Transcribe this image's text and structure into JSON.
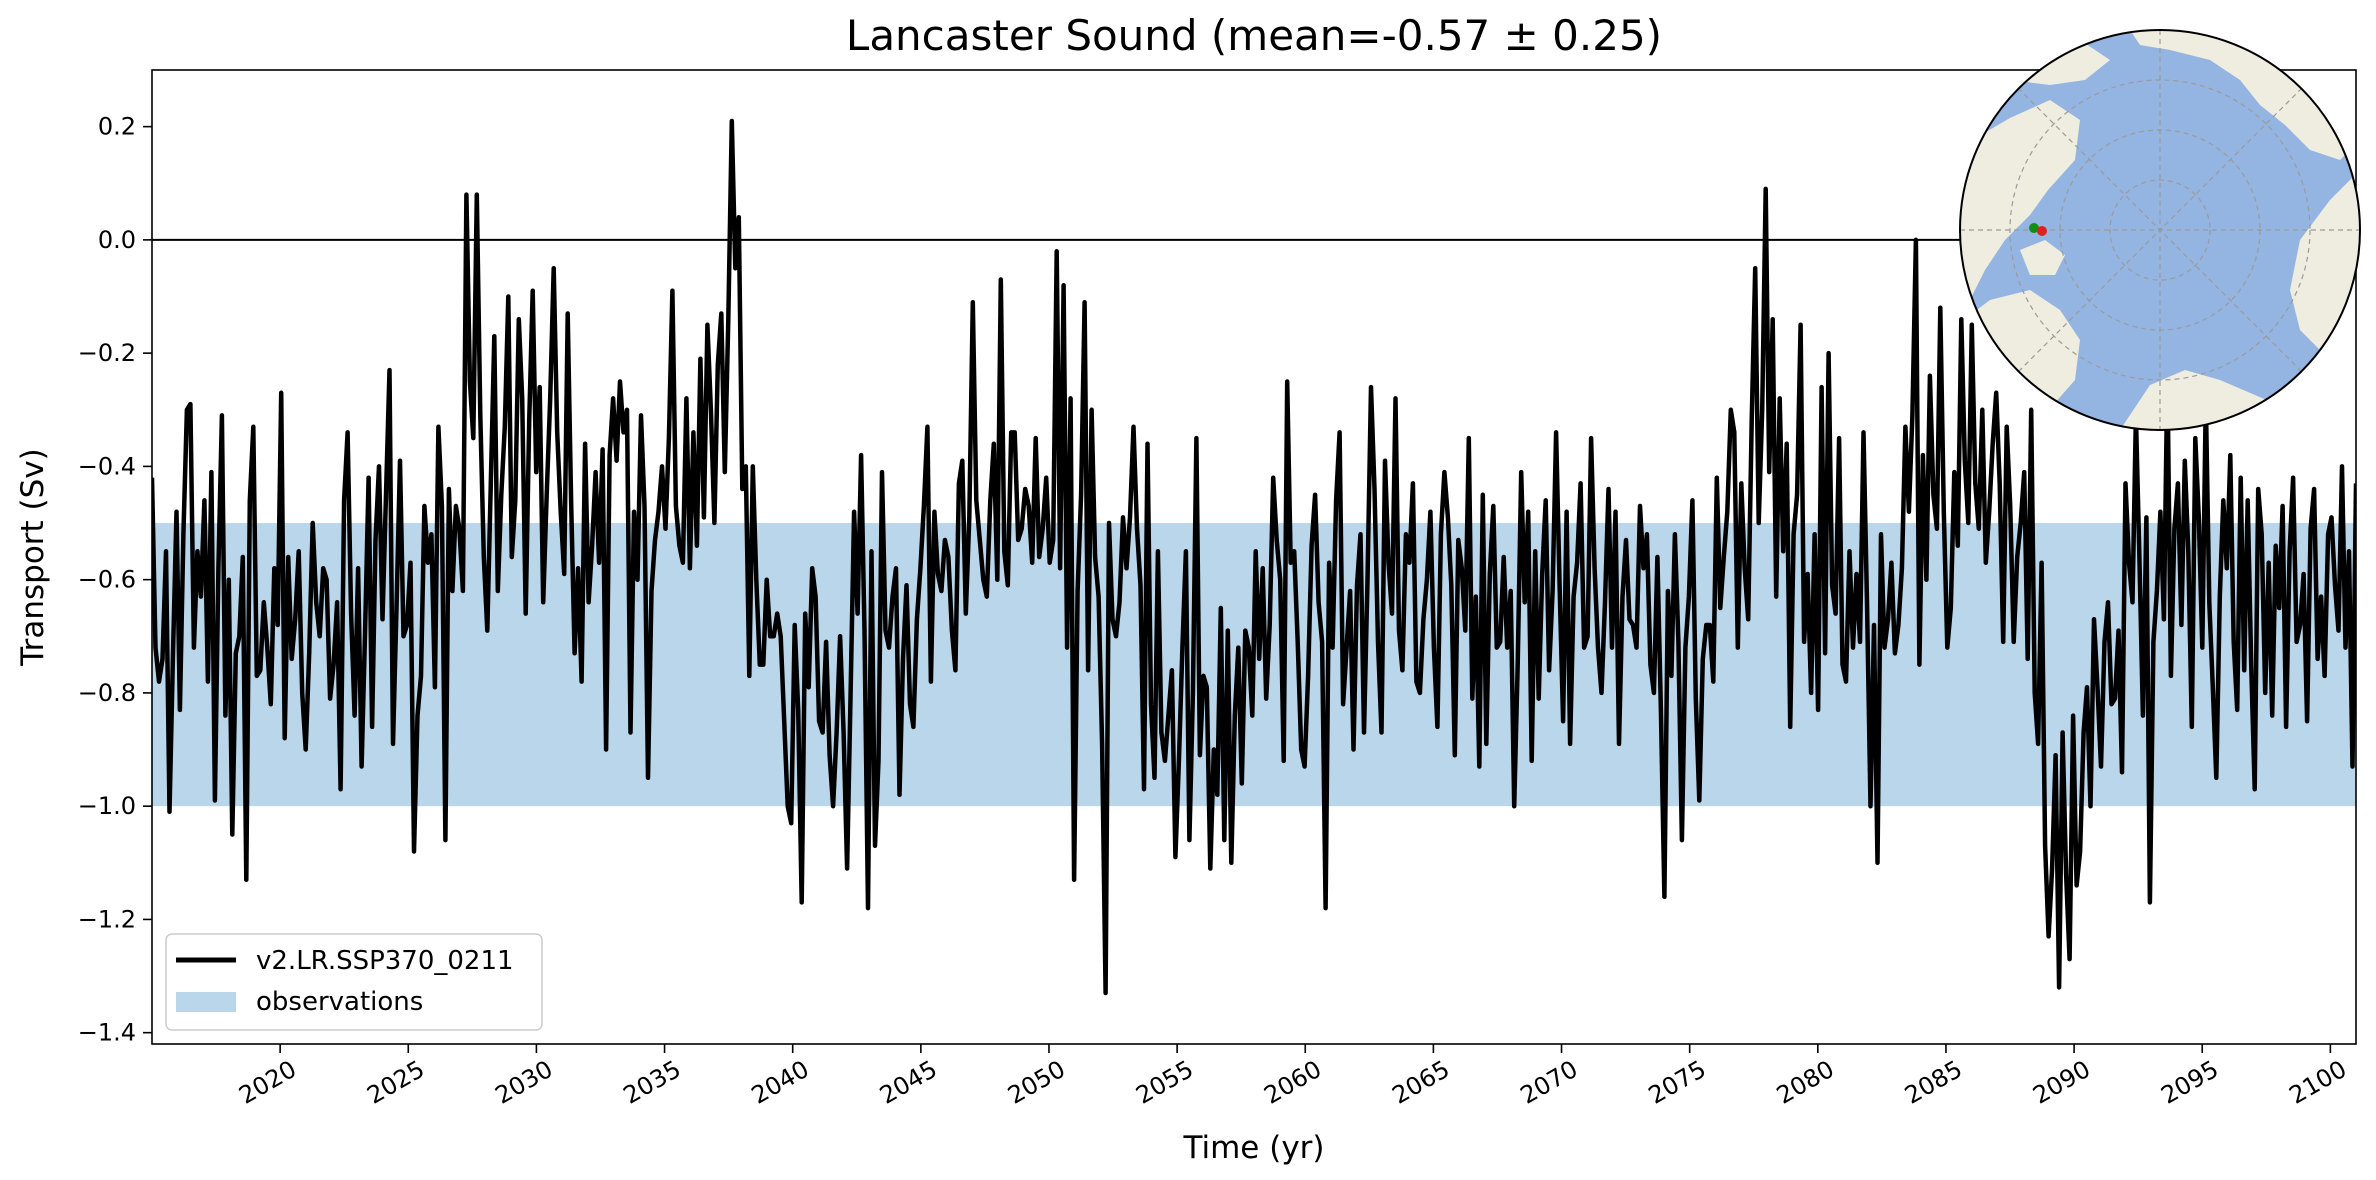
{
  "chart_data": {
    "type": "line",
    "title": "Lancaster Sound (mean=-0.57 ± 0.25)",
    "xlabel": "Time (yr)",
    "ylabel": "Transport (Sv)",
    "xlim": [
      2015,
      2101
    ],
    "ylim": [
      -1.42,
      0.3
    ],
    "x_ticks": [
      2020,
      2025,
      2030,
      2035,
      2040,
      2045,
      2050,
      2055,
      2060,
      2065,
      2070,
      2075,
      2080,
      2085,
      2090,
      2095,
      2100
    ],
    "x_tick_labels": [
      "2020",
      "2025",
      "2030",
      "2035",
      "2040",
      "2045",
      "2050",
      "2055",
      "2060",
      "2065",
      "2070",
      "2075",
      "2080",
      "2085",
      "2090",
      "2095",
      "2100"
    ],
    "y_ticks": [
      0.2,
      0.0,
      -0.2,
      -0.4,
      -0.6,
      -0.8,
      -1.0,
      -1.2,
      -1.4
    ],
    "y_tick_labels": [
      "0.2",
      "0.0",
      "−0.2",
      "−0.4",
      "−0.6",
      "−0.8",
      "−1.0",
      "−1.2",
      "−1.4"
    ],
    "zero_line": 0.0,
    "grid": false,
    "legend_position": "lower-left",
    "observations_band": {
      "name": "observations",
      "y_min": -1.0,
      "y_max": -0.5,
      "color": "#bad6ea"
    },
    "series": [
      {
        "name": "v2.LR.SSP370_0211",
        "color": "#000000",
        "resolution": "monthly",
        "x_start": 2015.0,
        "x_end": 2101.0,
        "values": [
          -0.42,
          -0.72,
          -0.78,
          -0.74,
          -0.55,
          -1.01,
          -0.73,
          -0.48,
          -0.83,
          -0.52,
          -0.3,
          -0.29,
          -0.72,
          -0.55,
          -0.63,
          -0.46,
          -0.78,
          -0.41,
          -0.99,
          -0.58,
          -0.31,
          -0.84,
          -0.6,
          -1.05,
          -0.73,
          -0.7,
          -0.56,
          -1.13,
          -0.46,
          -0.33,
          -0.77,
          -0.76,
          -0.64,
          -0.72,
          -0.82,
          -0.58,
          -0.68,
          -0.27,
          -0.88,
          -0.56,
          -0.74,
          -0.67,
          -0.55,
          -0.8,
          -0.9,
          -0.73,
          -0.5,
          -0.64,
          -0.7,
          -0.58,
          -0.6,
          -0.81,
          -0.75,
          -0.64,
          -0.97,
          -0.46,
          -0.34,
          -0.66,
          -0.84,
          -0.58,
          -0.93,
          -0.69,
          -0.42,
          -0.86,
          -0.53,
          -0.4,
          -0.67,
          -0.45,
          -0.23,
          -0.89,
          -0.65,
          -0.39,
          -0.7,
          -0.68,
          -0.57,
          -1.08,
          -0.84,
          -0.77,
          -0.47,
          -0.57,
          -0.52,
          -0.79,
          -0.33,
          -0.47,
          -1.06,
          -0.44,
          -0.62,
          -0.47,
          -0.51,
          -0.62,
          0.08,
          -0.25,
          -0.35,
          0.08,
          -0.31,
          -0.56,
          -0.69,
          -0.43,
          -0.17,
          -0.62,
          -0.45,
          -0.33,
          -0.1,
          -0.56,
          -0.46,
          -0.14,
          -0.28,
          -0.66,
          -0.32,
          -0.09,
          -0.41,
          -0.26,
          -0.64,
          -0.45,
          -0.28,
          -0.05,
          -0.34,
          -0.48,
          -0.59,
          -0.13,
          -0.46,
          -0.73,
          -0.58,
          -0.78,
          -0.36,
          -0.64,
          -0.54,
          -0.41,
          -0.57,
          -0.37,
          -0.9,
          -0.38,
          -0.28,
          -0.39,
          -0.25,
          -0.34,
          -0.3,
          -0.87,
          -0.48,
          -0.6,
          -0.31,
          -0.47,
          -0.95,
          -0.62,
          -0.53,
          -0.48,
          -0.4,
          -0.51,
          -0.35,
          -0.09,
          -0.47,
          -0.54,
          -0.57,
          -0.28,
          -0.58,
          -0.34,
          -0.54,
          -0.21,
          -0.49,
          -0.15,
          -0.3,
          -0.5,
          -0.22,
          -0.13,
          -0.41,
          -0.14,
          0.21,
          -0.05,
          0.04,
          -0.44,
          -0.4,
          -0.77,
          -0.4,
          -0.6,
          -0.75,
          -0.75,
          -0.6,
          -0.7,
          -0.7,
          -0.66,
          -0.7,
          -0.85,
          -1.0,
          -1.03,
          -0.68,
          -0.83,
          -1.17,
          -0.66,
          -0.79,
          -0.58,
          -0.63,
          -0.85,
          -0.87,
          -0.71,
          -0.91,
          -1.0,
          -0.87,
          -0.7,
          -0.87,
          -1.11,
          -0.8,
          -0.48,
          -0.66,
          -0.38,
          -0.69,
          -1.18,
          -0.55,
          -1.07,
          -0.92,
          -0.41,
          -0.69,
          -0.72,
          -0.63,
          -0.58,
          -0.98,
          -0.74,
          -0.61,
          -0.82,
          -0.86,
          -0.67,
          -0.58,
          -0.47,
          -0.33,
          -0.78,
          -0.48,
          -0.59,
          -0.62,
          -0.53,
          -0.56,
          -0.69,
          -0.76,
          -0.43,
          -0.39,
          -0.66,
          -0.49,
          -0.11,
          -0.46,
          -0.53,
          -0.6,
          -0.63,
          -0.46,
          -0.36,
          -0.6,
          -0.07,
          -0.55,
          -0.61,
          -0.34,
          -0.34,
          -0.53,
          -0.51,
          -0.44,
          -0.47,
          -0.57,
          -0.35,
          -0.56,
          -0.51,
          -0.42,
          -0.57,
          -0.53,
          -0.02,
          -0.58,
          -0.08,
          -0.72,
          -0.28,
          -1.13,
          -0.62,
          -0.45,
          -0.11,
          -0.76,
          -0.3,
          -0.56,
          -0.63,
          -0.89,
          -1.33,
          -0.5,
          -0.67,
          -0.7,
          -0.64,
          -0.49,
          -0.58,
          -0.49,
          -0.33,
          -0.51,
          -0.61,
          -0.97,
          -0.36,
          -0.82,
          -0.95,
          -0.55,
          -0.87,
          -0.92,
          -0.84,
          -0.76,
          -1.09,
          -0.92,
          -0.72,
          -0.55,
          -1.06,
          -0.8,
          -0.35,
          -0.91,
          -0.77,
          -0.79,
          -1.11,
          -0.9,
          -0.98,
          -0.65,
          -1.06,
          -0.69,
          -1.1,
          -0.84,
          -0.72,
          -0.96,
          -0.69,
          -0.72,
          -0.84,
          -0.55,
          -0.74,
          -0.58,
          -0.81,
          -0.68,
          -0.42,
          -0.53,
          -0.6,
          -0.92,
          -0.25,
          -0.57,
          -0.55,
          -0.71,
          -0.9,
          -0.93,
          -0.77,
          -0.54,
          -0.45,
          -0.64,
          -0.71,
          -1.18,
          -0.57,
          -0.72,
          -0.46,
          -0.34,
          -0.82,
          -0.72,
          -0.62,
          -0.9,
          -0.61,
          -0.52,
          -0.87,
          -0.6,
          -0.26,
          -0.44,
          -0.71,
          -0.87,
          -0.39,
          -0.57,
          -0.66,
          -0.28,
          -0.69,
          -0.76,
          -0.52,
          -0.57,
          -0.43,
          -0.78,
          -0.8,
          -0.67,
          -0.6,
          -0.48,
          -0.72,
          -0.86,
          -0.52,
          -0.41,
          -0.49,
          -0.61,
          -0.91,
          -0.53,
          -0.58,
          -0.69,
          -0.35,
          -0.81,
          -0.63,
          -0.93,
          -0.45,
          -0.89,
          -0.59,
          -0.47,
          -0.72,
          -0.71,
          -0.56,
          -0.72,
          -0.62,
          -1.0,
          -0.75,
          -0.41,
          -0.64,
          -0.48,
          -0.92,
          -0.55,
          -0.81,
          -0.59,
          -0.46,
          -0.76,
          -0.62,
          -0.34,
          -0.61,
          -0.85,
          -0.48,
          -0.89,
          -0.63,
          -0.57,
          -0.43,
          -0.72,
          -0.7,
          -0.35,
          -0.58,
          -0.72,
          -0.8,
          -0.64,
          -0.44,
          -0.72,
          -0.48,
          -0.89,
          -0.63,
          -0.53,
          -0.67,
          -0.68,
          -0.72,
          -0.47,
          -0.58,
          -0.52,
          -0.75,
          -0.8,
          -0.56,
          -0.83,
          -1.16,
          -0.62,
          -0.77,
          -0.52,
          -0.71,
          -1.06,
          -0.72,
          -0.63,
          -0.46,
          -0.81,
          -0.99,
          -0.74,
          -0.68,
          -0.68,
          -0.78,
          -0.42,
          -0.65,
          -0.56,
          -0.48,
          -0.3,
          -0.34,
          -0.72,
          -0.43,
          -0.58,
          -0.67,
          -0.32,
          -0.05,
          -0.5,
          -0.3,
          0.09,
          -0.41,
          -0.14,
          -0.63,
          -0.28,
          -0.55,
          -0.36,
          -0.86,
          -0.52,
          -0.45,
          -0.15,
          -0.71,
          -0.59,
          -0.8,
          -0.52,
          -0.83,
          -0.26,
          -0.73,
          -0.2,
          -0.61,
          -0.66,
          -0.35,
          -0.75,
          -0.78,
          -0.55,
          -0.72,
          -0.59,
          -0.71,
          -0.34,
          -0.64,
          -1.0,
          -0.68,
          -1.1,
          -0.52,
          -0.72,
          -0.67,
          -0.57,
          -0.73,
          -0.68,
          -0.58,
          -0.33,
          -0.48,
          -0.31,
          0.0,
          -0.75,
          -0.38,
          -0.6,
          -0.24,
          -0.45,
          -0.51,
          -0.12,
          -0.48,
          -0.72,
          -0.65,
          -0.41,
          -0.54,
          -0.14,
          -0.39,
          -0.5,
          -0.15,
          -0.43,
          -0.51,
          -0.3,
          -0.57,
          -0.48,
          -0.36,
          -0.27,
          -0.43,
          -0.71,
          -0.33,
          -0.47,
          -0.71,
          -0.56,
          -0.5,
          -0.41,
          -0.74,
          -0.3,
          -0.8,
          -0.89,
          -0.57,
          -1.07,
          -1.23,
          -1.11,
          -0.91,
          -1.32,
          -0.87,
          -1.12,
          -1.27,
          -0.84,
          -1.14,
          -1.08,
          -0.87,
          -0.79,
          -1.0,
          -0.67,
          -0.79,
          -0.93,
          -0.71,
          -0.64,
          -0.82,
          -0.81,
          -0.69,
          -0.94,
          -0.43,
          -0.57,
          -0.64,
          -0.31,
          -0.56,
          -0.84,
          -0.49,
          -1.17,
          -0.71,
          -0.62,
          -0.48,
          -0.67,
          -0.23,
          -0.77,
          -0.51,
          -0.43,
          -0.68,
          -0.39,
          -0.55,
          -0.86,
          -0.35,
          -0.49,
          -0.72,
          -0.28,
          -0.64,
          -0.79,
          -0.95,
          -0.63,
          -0.46,
          -0.58,
          -0.38,
          -0.71,
          -0.83,
          -0.42,
          -0.76,
          -0.46,
          -0.75,
          -0.97,
          -0.44,
          -0.52,
          -0.8,
          -0.57,
          -0.84,
          -0.54,
          -0.65,
          -0.47,
          -0.86,
          -0.55,
          -0.42,
          -0.71,
          -0.68,
          -0.59,
          -0.85,
          -0.51,
          -0.44,
          -0.74,
          -0.63,
          -0.77,
          -0.52,
          -0.49,
          -0.61,
          -0.69,
          -0.4,
          -0.72,
          -0.55,
          -0.93,
          -0.43
        ]
      }
    ],
    "inset_map": {
      "projection": "north-polar-stereographic",
      "ocean_color": "#94b4e2",
      "land_color": "#efede0",
      "markers": [
        {
          "color": "#168c16"
        },
        {
          "color": "#e02020"
        }
      ]
    }
  }
}
